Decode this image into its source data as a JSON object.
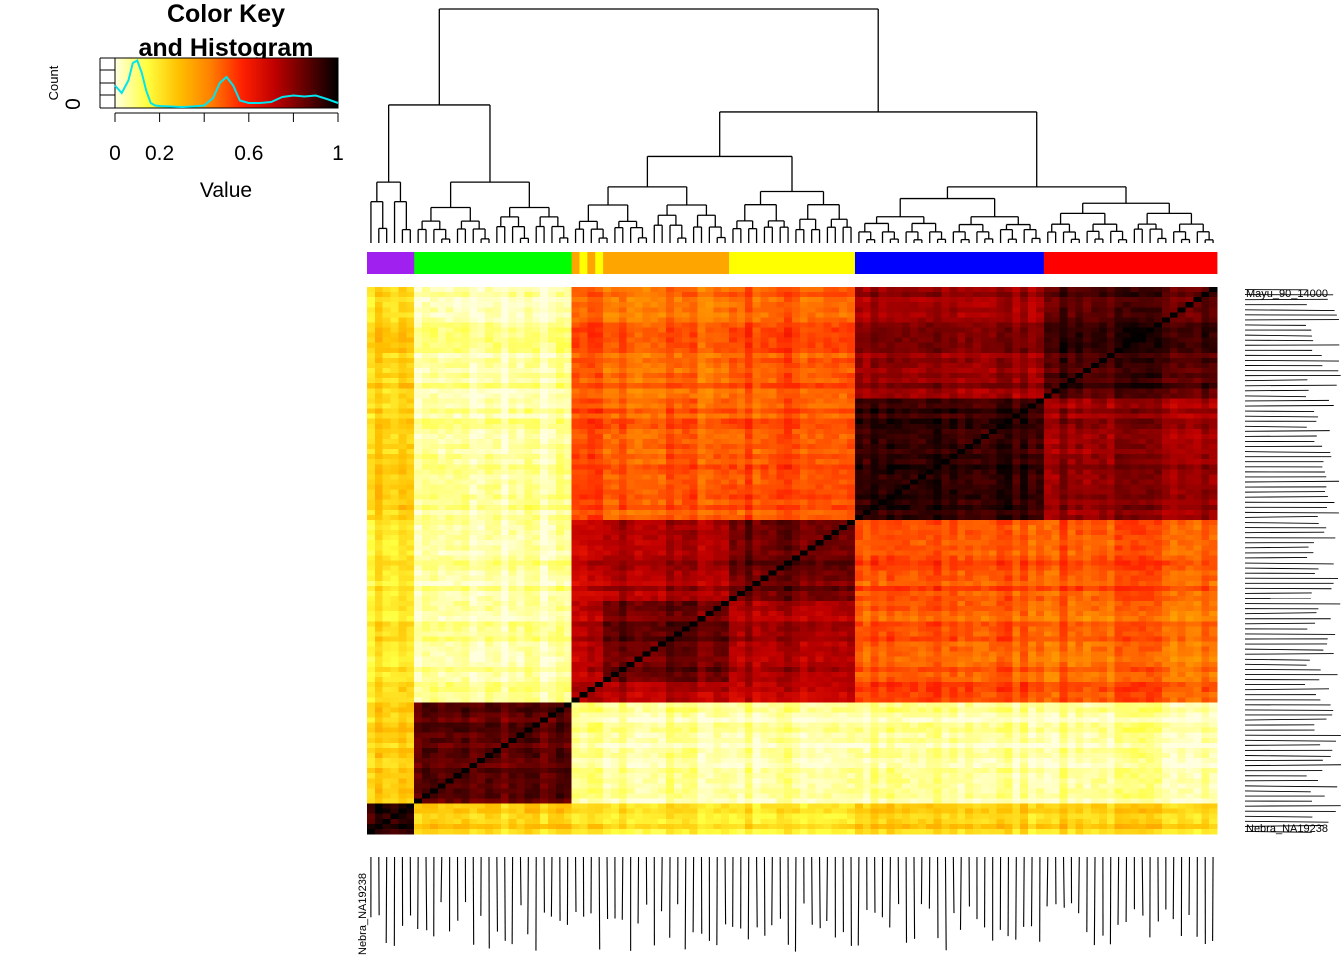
{
  "color_key": {
    "title_line1": "Color Key",
    "title_line2": "and Histogram",
    "x_axis_title": "Value",
    "y_axis_title": "Count",
    "y_tick": "0",
    "x_ticks": [
      "0",
      "0.2",
      "0.6",
      "1"
    ],
    "x_tick_values": [
      0,
      0.2,
      0.6,
      1
    ],
    "gradient_colors": [
      "#FFFFE0",
      "#FFFF40",
      "#FFC000",
      "#FF8000",
      "#FF2000",
      "#C00000",
      "#600000",
      "#000000"
    ],
    "histogram_color": "#00E5EE"
  },
  "chart_data": {
    "type": "heatmap",
    "title": "",
    "value_range": [
      0,
      1
    ],
    "histogram": {
      "x": [
        0,
        0.03,
        0.06,
        0.08,
        0.1,
        0.12,
        0.14,
        0.16,
        0.18,
        0.2,
        0.25,
        0.3,
        0.35,
        0.4,
        0.44,
        0.47,
        0.5,
        0.53,
        0.56,
        0.6,
        0.65,
        0.7,
        0.75,
        0.8,
        0.85,
        0.9,
        0.95,
        1
      ],
      "y": [
        0.45,
        0.3,
        0.55,
        0.9,
        0.95,
        0.7,
        0.35,
        0.1,
        0.05,
        0.04,
        0.03,
        0.02,
        0.03,
        0.05,
        0.2,
        0.5,
        0.62,
        0.45,
        0.15,
        0.1,
        0.1,
        0.12,
        0.22,
        0.25,
        0.23,
        0.25,
        0.18,
        0.1
      ]
    },
    "clusters": [
      {
        "color": "#A020F0",
        "size": 6
      },
      {
        "color": "#00FF00",
        "size": 20
      },
      {
        "color": "#FFA500",
        "size": 1
      },
      {
        "color": "#FFFF00",
        "size": 1
      },
      {
        "color": "#FFA500",
        "size": 1
      },
      {
        "color": "#FFFF00",
        "size": 1
      },
      {
        "color": "#FFA500",
        "size": 16
      },
      {
        "color": "#FFFF00",
        "size": 16
      },
      {
        "color": "#0000FF",
        "size": 24
      },
      {
        "color": "#FF0000",
        "size": 22
      }
    ],
    "block_similarity": [
      [
        0.95,
        0.25,
        0.2,
        0.2,
        0.2,
        0.2,
        0.2,
        0.2,
        0.25,
        0.25
      ],
      [
        0.25,
        0.85,
        0.05,
        0.05,
        0.05,
        0.05,
        0.05,
        0.05,
        0.05,
        0.05
      ],
      [
        0.2,
        0.05,
        0.75,
        0.7,
        0.7,
        0.7,
        0.7,
        0.68,
        0.5,
        0.48
      ],
      [
        0.2,
        0.05,
        0.7,
        0.75,
        0.7,
        0.7,
        0.7,
        0.68,
        0.5,
        0.48
      ],
      [
        0.2,
        0.05,
        0.7,
        0.7,
        0.75,
        0.7,
        0.72,
        0.68,
        0.5,
        0.48
      ],
      [
        0.2,
        0.05,
        0.7,
        0.7,
        0.7,
        0.75,
        0.7,
        0.68,
        0.5,
        0.48
      ],
      [
        0.2,
        0.05,
        0.7,
        0.7,
        0.72,
        0.7,
        0.85,
        0.75,
        0.48,
        0.46
      ],
      [
        0.2,
        0.05,
        0.68,
        0.68,
        0.68,
        0.68,
        0.75,
        0.85,
        0.5,
        0.5
      ],
      [
        0.25,
        0.05,
        0.5,
        0.5,
        0.5,
        0.5,
        0.48,
        0.5,
        0.92,
        0.78
      ],
      [
        0.25,
        0.05,
        0.48,
        0.48,
        0.48,
        0.48,
        0.46,
        0.5,
        0.78,
        0.9
      ]
    ],
    "row_labels_visible": [
      "Mayu_90_14000",
      "Nebra_NA19238"
    ],
    "column_labels_visible": [
      "Nebra_NA19238"
    ]
  }
}
